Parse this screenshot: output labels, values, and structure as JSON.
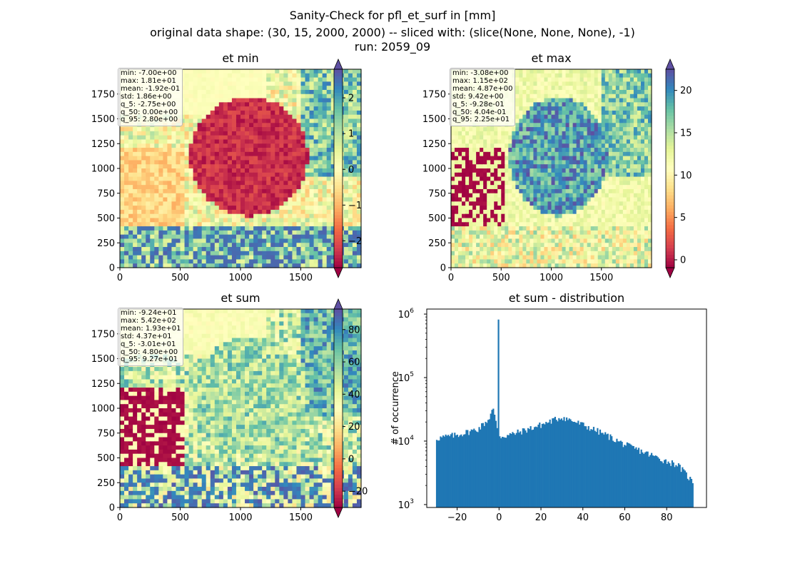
{
  "title_lines": [
    "Sanity-Check for pfl_et_surf in [mm]",
    "original data shape: (30, 15, 2000, 2000) -- sliced with: (slice(None, None, None), -1)",
    "run: 2059_09"
  ],
  "colors": {
    "hist_bar": "#1f77b4",
    "colormap": "Spectral"
  },
  "chart_data": [
    {
      "type": "heatmap",
      "title": "et min",
      "x_ticks": [
        0,
        500,
        1000,
        1500
      ],
      "y_ticks": [
        0,
        250,
        500,
        750,
        1000,
        1250,
        1500,
        1750
      ],
      "xlim": [
        0,
        2000
      ],
      "ylim": [
        0,
        2000
      ],
      "colorbar": {
        "vmin": -2.75,
        "vmax": 2.8,
        "ticks": [
          -2,
          -1,
          0,
          1,
          2
        ],
        "tick_labels": [
          "−2",
          "−1",
          "0",
          "1",
          "2"
        ],
        "extend": "both"
      },
      "stats": [
        "min: -7.00e+00",
        "max: 1.81e+01",
        "mean: -1.92e-01",
        "std: 1.86e+00",
        "q_5: -2.75e+00",
        "q_50: 0.00e+00",
        "q_95: 2.80e+00"
      ]
    },
    {
      "type": "heatmap",
      "title": "et max",
      "x_ticks": [
        0,
        500,
        1000,
        1500
      ],
      "y_ticks": [
        0,
        250,
        500,
        750,
        1000,
        1250,
        1500,
        1750
      ],
      "xlim": [
        0,
        2000
      ],
      "ylim": [
        0,
        2000
      ],
      "colorbar": {
        "vmin": -0.928,
        "vmax": 22.5,
        "ticks": [
          0,
          5,
          10,
          15,
          20
        ],
        "tick_labels": [
          "0",
          "5",
          "10",
          "15",
          "20"
        ],
        "extend": "both"
      },
      "stats": [
        "min: -3.08e+00",
        "max: 1.15e+02",
        "mean: 4.87e+00",
        "std: 9.42e+00",
        "q_5: -9.28e-01",
        "q_50: 4.04e-01",
        "q_95: 2.25e+01"
      ]
    },
    {
      "type": "heatmap",
      "title": "et sum",
      "x_ticks": [
        0,
        500,
        1000,
        1500
      ],
      "y_ticks": [
        0,
        250,
        500,
        750,
        1000,
        1250,
        1500,
        1750
      ],
      "xlim": [
        0,
        2000
      ],
      "ylim": [
        0,
        2000
      ],
      "colorbar": {
        "vmin": -30.1,
        "vmax": 92.7,
        "ticks": [
          -20,
          0,
          20,
          40,
          60,
          80
        ],
        "tick_labels": [
          "−20",
          "0",
          "20",
          "40",
          "60",
          "80"
        ],
        "extend": "both"
      },
      "stats": [
        "min: -9.24e+01",
        "max: 5.42e+02",
        "mean: 1.93e+01",
        "std: 4.37e+01",
        "q_5: -3.01e+01",
        "q_50: 4.80e+00",
        "q_95: 9.27e+01"
      ]
    },
    {
      "type": "bar",
      "title": "et sum - distribution",
      "ylabel": "# of occurrence",
      "xlabel": "",
      "yscale": "log",
      "xlim": [
        -34.5,
        99.0
      ],
      "ylim": [
        900,
        1200000
      ],
      "x_ticks": [
        -20,
        0,
        20,
        40,
        60,
        80
      ],
      "x_tick_labels": [
        "−20",
        "0",
        "20",
        "40",
        "60",
        "80"
      ],
      "y_ticks": [
        1000,
        10000,
        100000,
        1000000
      ],
      "y_tick_labels": [
        [
          "10",
          "3"
        ],
        [
          "10",
          "4"
        ],
        [
          "10",
          "5"
        ],
        [
          "10",
          "6"
        ]
      ],
      "bins": {
        "start": -30.1,
        "end": 92.7,
        "count": 200
      },
      "spike": {
        "x": -0.3,
        "count": 820000
      },
      "profile": [
        [
          -30.1,
          11000
        ],
        [
          -20,
          12500
        ],
        [
          -10,
          15500
        ],
        [
          -5,
          22000
        ],
        [
          -3,
          33000
        ],
        [
          -1,
          16500
        ],
        [
          0,
          12500
        ],
        [
          1,
          11800
        ],
        [
          5,
          12500
        ],
        [
          10,
          14000
        ],
        [
          20,
          18000
        ],
        [
          30,
          24000
        ],
        [
          40,
          18000
        ],
        [
          50,
          13000
        ],
        [
          60,
          8800
        ],
        [
          70,
          6500
        ],
        [
          80,
          4800
        ],
        [
          85,
          4300
        ],
        [
          90,
          2800
        ],
        [
          92.7,
          2200
        ]
      ]
    }
  ]
}
